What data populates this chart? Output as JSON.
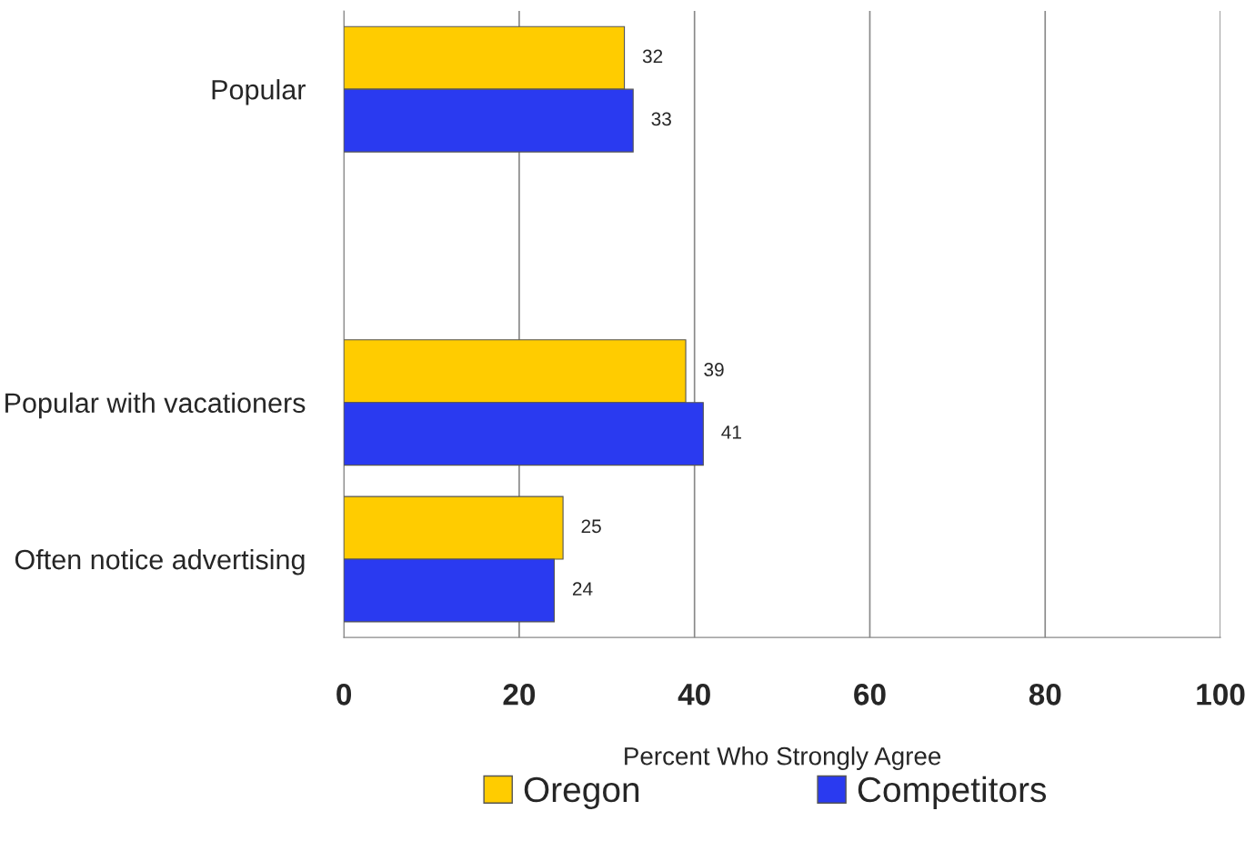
{
  "chart_data": {
    "type": "bar",
    "orientation": "horizontal",
    "xlabel": "Percent Who Strongly Agree",
    "categories": [
      "Popular",
      null,
      "Popular with vacationers",
      "Often notice advertising"
    ],
    "series": [
      {
        "name": "Oregon",
        "color": "#ffcc00",
        "values": [
          32,
          null,
          39,
          25
        ]
      },
      {
        "name": "Competitors",
        "color": "#2a3af0",
        "values": [
          33,
          null,
          41,
          24
        ]
      }
    ],
    "xlim": [
      0,
      100
    ],
    "xticks": [
      0,
      20,
      40,
      60,
      80,
      100
    ],
    "grid": "x",
    "legend": "bottom",
    "data_labels": true
  }
}
